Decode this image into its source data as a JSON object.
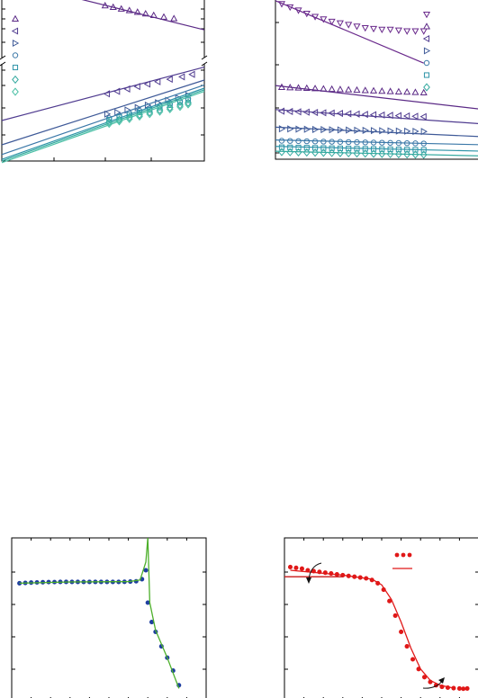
{
  "chart_data": [
    {
      "type": "line",
      "panel": "top-left",
      "axis_break": true,
      "legend_markers": [
        "triangle-up",
        "triangle-left",
        "triangle-right",
        "circle",
        "square",
        "diamond",
        "diamond"
      ],
      "colors": [
        "#5b2a86",
        "#503c90",
        "#3f5a98",
        "#3b78a8",
        "#2e94a8",
        "#35aaa0",
        "#4cc0a6"
      ],
      "series": [
        {
          "marker": "triangle-up",
          "color": "#5b2a86",
          "x": [
            0.51,
            0.55,
            0.59,
            0.63,
            0.67,
            0.71,
            0.75,
            0.8,
            0.85
          ],
          "y": [
            0.96,
            0.95,
            0.94,
            0.93,
            0.92,
            0.91,
            0.9,
            0.89,
            0.88
          ],
          "fit": [
            [
              0.0,
              1.12
            ],
            [
              1.0,
              0.81
            ]
          ]
        },
        {
          "marker": "triangle-left",
          "color": "#503c90",
          "x": [
            0.52,
            0.57,
            0.62,
            0.67,
            0.72,
            0.77,
            0.83,
            0.89,
            0.94
          ],
          "y": [
            0.415,
            0.43,
            0.445,
            0.46,
            0.475,
            0.49,
            0.505,
            0.52,
            0.535
          ],
          "fit": [
            [
              0.0,
              0.25
            ],
            [
              1.0,
              0.58
            ]
          ]
        },
        {
          "marker": "triangle-right",
          "color": "#3f5a98",
          "x": [
            0.52,
            0.57,
            0.62,
            0.67,
            0.72,
            0.77,
            0.82,
            0.87,
            0.92
          ],
          "y": [
            0.29,
            0.3,
            0.315,
            0.33,
            0.345,
            0.36,
            0.375,
            0.39,
            0.405
          ],
          "fit": [
            [
              0.0,
              0.1
            ],
            [
              1.0,
              0.5
            ]
          ]
        },
        {
          "marker": "circle",
          "color": "#3b78a8",
          "x": [
            0.53,
            0.58,
            0.63,
            0.68,
            0.73,
            0.78,
            0.83,
            0.88,
            0.92
          ],
          "y": [
            0.265,
            0.28,
            0.295,
            0.31,
            0.325,
            0.34,
            0.355,
            0.37,
            0.385
          ],
          "fit": [
            [
              0.0,
              0.04
            ],
            [
              1.0,
              0.47
            ]
          ]
        },
        {
          "marker": "square",
          "color": "#2e94a8",
          "x": [
            0.53,
            0.58,
            0.63,
            0.68,
            0.73,
            0.78,
            0.83,
            0.88,
            0.92
          ],
          "y": [
            0.255,
            0.27,
            0.285,
            0.3,
            0.315,
            0.33,
            0.345,
            0.36,
            0.375
          ],
          "fit": [
            [
              0.0,
              0.01
            ],
            [
              1.0,
              0.45
            ]
          ]
        },
        {
          "marker": "diamond",
          "color": "#35aaa0",
          "x": [
            0.53,
            0.58,
            0.63,
            0.68,
            0.73,
            0.78,
            0.83,
            0.88,
            0.92
          ],
          "y": [
            0.24,
            0.255,
            0.27,
            0.285,
            0.3,
            0.315,
            0.33,
            0.345,
            0.36
          ],
          "fit": [
            [
              0.0,
              0.0
            ],
            [
              1.0,
              0.44
            ]
          ]
        },
        {
          "marker": "diamond",
          "color": "#4cc0a6",
          "x": [
            0.53,
            0.58,
            0.63,
            0.68,
            0.73,
            0.78,
            0.83,
            0.88,
            0.92
          ],
          "y": [
            0.23,
            0.245,
            0.26,
            0.275,
            0.29,
            0.305,
            0.32,
            0.335,
            0.35
          ],
          "fit": [
            [
              0.0,
              -0.01
            ],
            [
              1.0,
              0.43
            ]
          ]
        }
      ],
      "xlim": [
        0,
        1
      ],
      "ylim": [
        0,
        1
      ],
      "title": "",
      "xlabel": "",
      "ylabel": ""
    },
    {
      "type": "line",
      "panel": "top-right",
      "legend_markers": [
        "triangle-down",
        "triangle-up",
        "triangle-left",
        "triangle-right",
        "circle",
        "square",
        "diamond"
      ],
      "colors": [
        "#6a2a8c",
        "#5b2a86",
        "#503c90",
        "#3f5a98",
        "#3b78a8",
        "#2e94a8",
        "#35aaa0"
      ],
      "series": [
        {
          "marker": "triangle-down",
          "color": "#6a2a8c",
          "x": [
            0.03,
            0.07,
            0.11,
            0.15,
            0.19,
            0.23,
            0.27,
            0.31,
            0.35,
            0.39,
            0.43,
            0.47,
            0.51,
            0.55,
            0.59,
            0.63,
            0.67,
            0.71
          ],
          "y": [
            0.97,
            0.95,
            0.93,
            0.91,
            0.89,
            0.875,
            0.86,
            0.85,
            0.84,
            0.83,
            0.82,
            0.815,
            0.81,
            0.81,
            0.805,
            0.8,
            0.8,
            0.8
          ],
          "fit": [
            [
              0.0,
              0.99
            ],
            [
              0.71,
              0.6
            ]
          ]
        },
        {
          "marker": "triangle-up",
          "color": "#5b2a86",
          "x": [
            0.03,
            0.07,
            0.11,
            0.15,
            0.19,
            0.23,
            0.27,
            0.31,
            0.35,
            0.39,
            0.43,
            0.47,
            0.51,
            0.55,
            0.59,
            0.63,
            0.67,
            0.71
          ],
          "y": [
            0.45,
            0.448,
            0.446,
            0.444,
            0.442,
            0.44,
            0.438,
            0.436,
            0.434,
            0.432,
            0.43,
            0.428,
            0.426,
            0.424,
            0.422,
            0.42,
            0.418,
            0.416
          ],
          "fit": [
            [
              0.0,
              0.46
            ],
            [
              1.0,
              0.31
            ]
          ]
        },
        {
          "marker": "triangle-left",
          "color": "#503c90",
          "x": [
            0.03,
            0.07,
            0.11,
            0.15,
            0.19,
            0.23,
            0.27,
            0.31,
            0.35,
            0.39,
            0.43,
            0.47,
            0.51,
            0.55,
            0.59,
            0.63,
            0.67,
            0.71
          ],
          "y": [
            0.3,
            0.298,
            0.296,
            0.294,
            0.292,
            0.29,
            0.288,
            0.286,
            0.284,
            0.282,
            0.28,
            0.278,
            0.276,
            0.274,
            0.272,
            0.27,
            0.268,
            0.266
          ],
          "fit": [
            [
              0.0,
              0.31
            ],
            [
              1.0,
              0.22
            ]
          ]
        },
        {
          "marker": "triangle-right",
          "color": "#3f5a98",
          "x": [
            0.03,
            0.07,
            0.11,
            0.15,
            0.19,
            0.23,
            0.27,
            0.31,
            0.35,
            0.39,
            0.43,
            0.47,
            0.51,
            0.55,
            0.59,
            0.63,
            0.67,
            0.71
          ],
          "y": [
            0.19,
            0.189,
            0.188,
            0.187,
            0.186,
            0.185,
            0.184,
            0.183,
            0.182,
            0.181,
            0.18,
            0.179,
            0.178,
            0.177,
            0.176,
            0.175,
            0.174,
            0.173
          ],
          "fit": [
            [
              0.0,
              0.2
            ],
            [
              1.0,
              0.14
            ]
          ]
        },
        {
          "marker": "circle",
          "color": "#3b78a8",
          "x": [
            0.03,
            0.07,
            0.11,
            0.15,
            0.19,
            0.23,
            0.27,
            0.31,
            0.35,
            0.39,
            0.43,
            0.47,
            0.51,
            0.55,
            0.59,
            0.63,
            0.67,
            0.71
          ],
          "y": [
            0.115,
            0.114,
            0.113,
            0.112,
            0.111,
            0.11,
            0.109,
            0.108,
            0.107,
            0.106,
            0.105,
            0.104,
            0.103,
            0.102,
            0.101,
            0.1,
            0.099,
            0.098
          ],
          "fit": [
            [
              0.0,
              0.12
            ],
            [
              1.0,
              0.09
            ]
          ]
        },
        {
          "marker": "square",
          "color": "#2e94a8",
          "x": [
            0.03,
            0.07,
            0.11,
            0.15,
            0.19,
            0.23,
            0.27,
            0.31,
            0.35,
            0.39,
            0.43,
            0.47,
            0.51,
            0.55,
            0.59,
            0.63,
            0.67,
            0.71
          ],
          "y": [
            0.075,
            0.074,
            0.073,
            0.072,
            0.071,
            0.07,
            0.069,
            0.068,
            0.067,
            0.066,
            0.065,
            0.064,
            0.063,
            0.062,
            0.061,
            0.06,
            0.059,
            0.058
          ],
          "fit": [
            [
              0.0,
              0.08
            ],
            [
              1.0,
              0.05
            ]
          ]
        },
        {
          "marker": "diamond",
          "color": "#35aaa0",
          "x": [
            0.03,
            0.07,
            0.11,
            0.15,
            0.19,
            0.23,
            0.27,
            0.31,
            0.35,
            0.39,
            0.43,
            0.47,
            0.51,
            0.55,
            0.59,
            0.63,
            0.67,
            0.71
          ],
          "y": [
            0.045,
            0.044,
            0.043,
            0.042,
            0.041,
            0.04,
            0.039,
            0.038,
            0.037,
            0.036,
            0.035,
            0.034,
            0.033,
            0.032,
            0.031,
            0.03,
            0.029,
            0.028
          ],
          "fit": [
            [
              0.0,
              0.05
            ],
            [
              1.0,
              0.02
            ]
          ]
        }
      ],
      "xlim": [
        0,
        1
      ],
      "ylim": [
        0,
        1
      ],
      "title": "",
      "xlabel": "",
      "ylabel": ""
    },
    {
      "type": "line",
      "panel": "bottom-left",
      "log_y": true,
      "colors": {
        "markers": "#1f3fa0",
        "curve": "#4caf2a"
      },
      "series": [
        {
          "marker": "circle",
          "color": "#1f3fa0",
          "x": [
            0.04,
            0.07,
            0.1,
            0.13,
            0.16,
            0.19,
            0.22,
            0.25,
            0.28,
            0.31,
            0.34,
            0.37,
            0.4,
            0.43,
            0.46,
            0.49,
            0.52,
            0.55,
            0.58,
            0.61,
            0.64,
            0.67,
            0.69,
            0.7,
            0.72,
            0.74,
            0.77,
            0.8,
            0.83,
            0.86
          ],
          "y": [
            0.72,
            0.722,
            0.724,
            0.725,
            0.726,
            0.727,
            0.727,
            0.728,
            0.728,
            0.728,
            0.728,
            0.728,
            0.728,
            0.728,
            0.728,
            0.728,
            0.728,
            0.728,
            0.729,
            0.73,
            0.732,
            0.745,
            0.8,
            0.6,
            0.48,
            0.42,
            0.33,
            0.26,
            0.18,
            0.09
          ]
        }
      ],
      "curve": [
        [
          0.04,
          0.72
        ],
        [
          0.3,
          0.728
        ],
        [
          0.6,
          0.73
        ],
        [
          0.66,
          0.74
        ],
        [
          0.69,
          0.85
        ],
        [
          0.7,
          1.0
        ],
        [
          0.71,
          0.6
        ],
        [
          0.74,
          0.43
        ],
        [
          0.8,
          0.26
        ],
        [
          0.86,
          0.07
        ]
      ],
      "xlim": [
        0,
        1
      ],
      "ylim": [
        0,
        1
      ],
      "title": "",
      "xlabel": "",
      "ylabel": ""
    },
    {
      "type": "line",
      "panel": "bottom-right",
      "log_y": true,
      "colors": {
        "markers": "#e01818",
        "curve": "#e01818",
        "reference": "#c81818",
        "arrows": "#111111"
      },
      "legend_entries": [
        "markers",
        "line"
      ],
      "series": [
        {
          "marker": "circle",
          "color": "#e01818",
          "x": [
            0.03,
            0.06,
            0.09,
            0.12,
            0.15,
            0.18,
            0.21,
            0.24,
            0.27,
            0.3,
            0.33,
            0.36,
            0.39,
            0.42,
            0.45,
            0.48,
            0.51,
            0.54,
            0.57,
            0.6,
            0.63,
            0.66,
            0.69,
            0.72,
            0.75,
            0.78,
            0.81,
            0.84,
            0.87,
            0.9,
            0.92,
            0.94
          ],
          "y": [
            0.82,
            0.815,
            0.81,
            0.8,
            0.795,
            0.79,
            0.785,
            0.78,
            0.775,
            0.77,
            0.765,
            0.76,
            0.755,
            0.75,
            0.74,
            0.72,
            0.68,
            0.61,
            0.52,
            0.42,
            0.33,
            0.25,
            0.19,
            0.14,
            0.11,
            0.09,
            0.08,
            0.075,
            0.072,
            0.07,
            0.068,
            0.07
          ]
        }
      ],
      "curve": [
        [
          0.03,
          0.8
        ],
        [
          0.3,
          0.77
        ],
        [
          0.45,
          0.745
        ],
        [
          0.5,
          0.71
        ],
        [
          0.55,
          0.62
        ],
        [
          0.6,
          0.48
        ],
        [
          0.65,
          0.32
        ],
        [
          0.7,
          0.19
        ],
        [
          0.75,
          0.12
        ],
        [
          0.8,
          0.09
        ],
        [
          0.86,
          0.075
        ]
      ],
      "reference_line": [
        [
          0.0,
          0.76
        ],
        [
          0.3,
          0.76
        ]
      ],
      "xlim": [
        0,
        1
      ],
      "ylim": [
        0,
        1
      ],
      "title": "",
      "xlabel": "",
      "ylabel": ""
    }
  ]
}
